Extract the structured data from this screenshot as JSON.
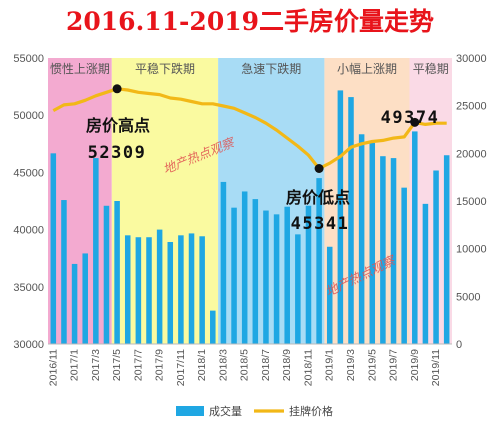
{
  "title": "2016.11-2019二手房价量走势",
  "chart_data": {
    "type": "bar+line",
    "title": "2016.11-2019二手房价量走势",
    "x": [
      "2016/11",
      "2016/12",
      "2017/1",
      "2017/2",
      "2017/3",
      "2017/4",
      "2017/5",
      "2017/6",
      "2017/7",
      "2017/8",
      "2017/9",
      "2017/10",
      "2017/11",
      "2017/12",
      "2018/1",
      "2018/2",
      "2018/3",
      "2018/4",
      "2018/5",
      "2018/6",
      "2018/7",
      "2018/8",
      "2018/9",
      "2018/10",
      "2018/11",
      "2018/12",
      "2019/1",
      "2019/2",
      "2019/3",
      "2019/4",
      "2019/5",
      "2019/6",
      "2019/7",
      "2019/8",
      "2019/9",
      "2019/10",
      "2019/11",
      "2019/12"
    ],
    "xtick_labels": [
      "2016/11",
      "2017/1",
      "2017/3",
      "2017/5",
      "2017/7",
      "2017/9",
      "2017/11",
      "2018/1",
      "2018/3",
      "2018/5",
      "2018/7",
      "2018/9",
      "2018/11",
      "2019/1",
      "2019/3",
      "2019/5",
      "2019/7",
      "2019/9",
      "2019/11"
    ],
    "left_axis": {
      "range": [
        30000,
        55000
      ],
      "ticks": [
        30000,
        35000,
        40000,
        45000,
        50000,
        55000
      ]
    },
    "right_axis": {
      "range": [
        0,
        30000
      ],
      "ticks": [
        0,
        5000,
        10000,
        15000,
        20000,
        25000,
        30000
      ]
    },
    "series": [
      {
        "name": "成交量",
        "kind": "bar",
        "axis": "right",
        "color": "#1fa7e3",
        "values": [
          20000,
          15100,
          8400,
          9500,
          19500,
          14500,
          15000,
          11400,
          11200,
          11200,
          12000,
          10700,
          11400,
          11600,
          11300,
          3500,
          17000,
          14300,
          16000,
          15200,
          14000,
          13600,
          14400,
          11500,
          14500,
          17400,
          10200,
          26600,
          25900,
          22000,
          21100,
          19700,
          19500,
          16400,
          22300,
          14700,
          18200,
          19800
        ]
      },
      {
        "name": "挂牌价格",
        "kind": "line",
        "axis": "left",
        "color": "#f2b817",
        "values": [
          50400,
          50900,
          51000,
          51300,
          51700,
          52000,
          52309,
          52200,
          52000,
          51900,
          51800,
          51500,
          51400,
          51200,
          51000,
          51000,
          50800,
          50600,
          50200,
          49800,
          49300,
          48700,
          48000,
          47300,
          46500,
          45341,
          45800,
          46400,
          47200,
          47500,
          47700,
          47800,
          48000,
          48100,
          49374,
          49200,
          49300,
          49300
        ]
      }
    ],
    "phases": [
      {
        "label": "惯性上涨期",
        "from": 0,
        "to": 5,
        "color": "#f3aad0"
      },
      {
        "label": "平稳下跌期",
        "from": 6,
        "to": 15,
        "color": "#fafaa0"
      },
      {
        "label": "急速下跌期",
        "from": 16,
        "to": 25,
        "color": "#a8dcf5"
      },
      {
        "label": "小幅上涨期",
        "from": 26,
        "to": 33,
        "color": "#fddfc5"
      },
      {
        "label": "平稳期",
        "from": 34,
        "to": 37,
        "color": "#fadae6"
      }
    ],
    "annotations": [
      {
        "label": "房价高点",
        "value": "52309",
        "index": 6
      },
      {
        "label": "房价低点",
        "value": "45341",
        "index": 25
      },
      {
        "label": "",
        "value": "49374",
        "index": 34
      }
    ],
    "watermarks": [
      "地产热点观察",
      "地产热点观察"
    ],
    "legend": [
      "成交量",
      "挂牌价格"
    ],
    "legend_position": "bottom"
  }
}
